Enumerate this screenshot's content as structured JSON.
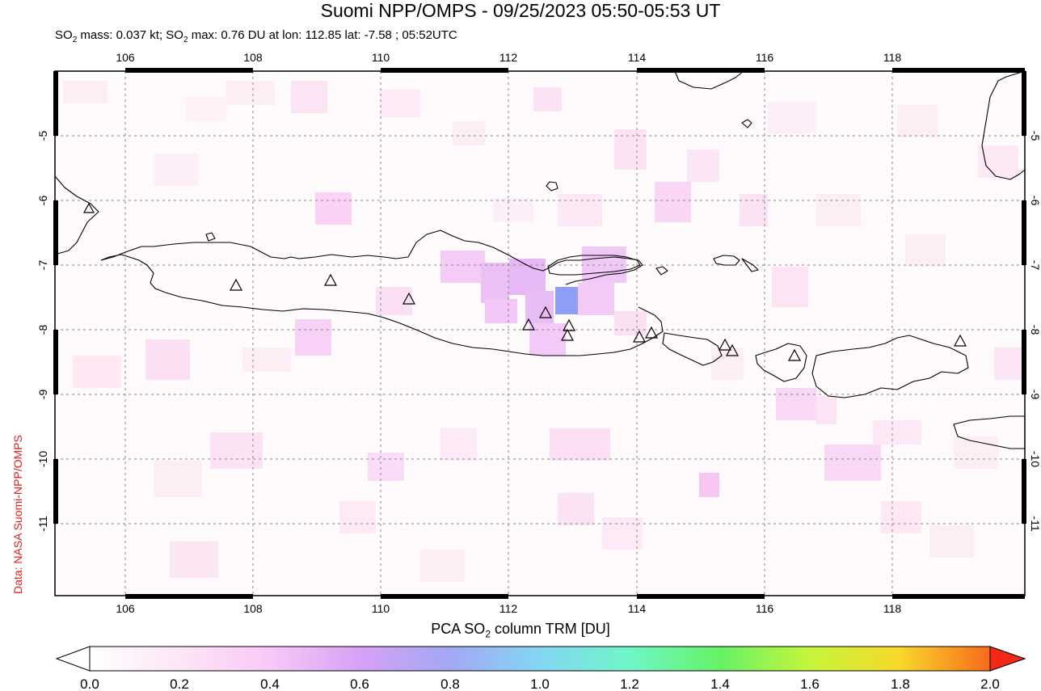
{
  "title": "Suomi NPP/OMPS - 09/25/2023 05:50-05:53 UT",
  "subtitle": {
    "p1": "SO",
    "sub1": "2",
    "p2": " mass: 0.037 kt; SO",
    "sub2": "2",
    "p3": " max: 0.76 DU at lon: 112.85 lat: -7.58 ; 05:52UTC"
  },
  "credit": "Data: NASA Suomi-NPP/OMPS",
  "colorbar": {
    "title_p1": "PCA SO",
    "title_sub": "2",
    "title_p2": " column TRM [DU]",
    "ticks": [
      "0.0",
      "0.2",
      "0.4",
      "0.6",
      "0.8",
      "1.0",
      "1.2",
      "1.4",
      "1.6",
      "1.8",
      "2.0"
    ],
    "colors": [
      "#ffffff",
      "#fde6f6",
      "#f9c8f7",
      "#d6a2f6",
      "#a3a8f4",
      "#84d6f3",
      "#6ff6c8",
      "#66f266",
      "#c6f53a",
      "#f8d82a",
      "#f86a1c",
      "#f32818"
    ]
  },
  "map": {
    "lon_ticks": [
      "106",
      "108",
      "110",
      "112",
      "114",
      "116",
      "118"
    ],
    "lat_ticks": [
      "-5",
      "-6",
      "-7",
      "-8",
      "-9",
      "-10",
      "-11"
    ],
    "max_so2_du": 0.76,
    "max_lon": 112.85,
    "max_lat": -7.58,
    "volcano_marker": "triangle-icon"
  }
}
